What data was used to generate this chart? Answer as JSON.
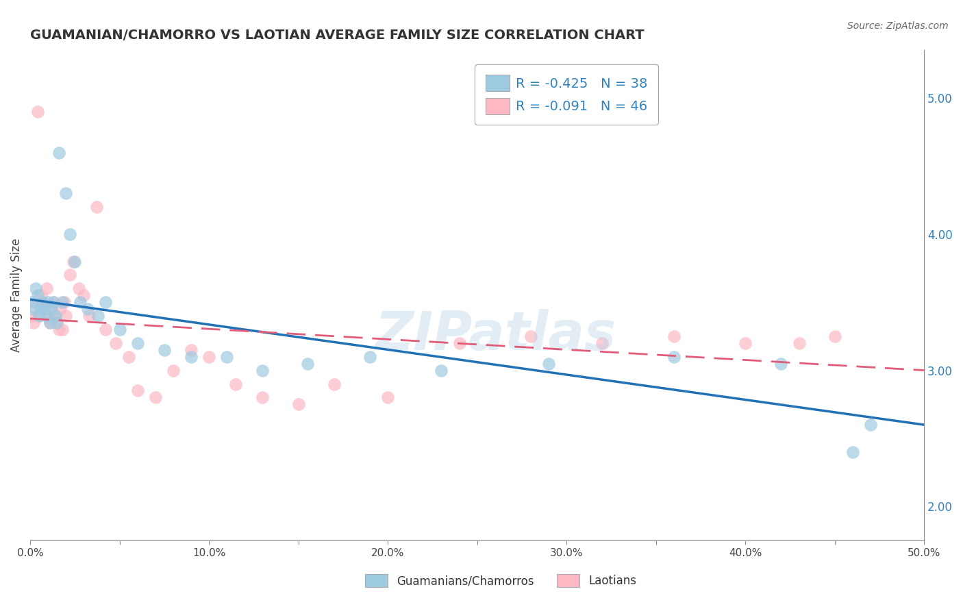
{
  "title": "GUAMANIAN/CHAMORRO VS LAOTIAN AVERAGE FAMILY SIZE CORRELATION CHART",
  "source_text": "Source: ZipAtlas.com",
  "ylabel": "Average Family Size",
  "xlim": [
    0.0,
    0.5
  ],
  "ylim": [
    1.75,
    5.35
  ],
  "yticks_right": [
    2.0,
    3.0,
    4.0,
    5.0
  ],
  "xticks": [
    0.0,
    0.05,
    0.1,
    0.15,
    0.2,
    0.25,
    0.3,
    0.35,
    0.4,
    0.45,
    0.5
  ],
  "xtick_labels": [
    "0.0%",
    "",
    "10.0%",
    "",
    "20.0%",
    "",
    "30.0%",
    "",
    "40.0%",
    "",
    "50.0%"
  ],
  "watermark": "ZIPatlas",
  "legend_r1": "R = -0.425",
  "legend_n1": "N = 38",
  "legend_r2": "R = -0.091",
  "legend_n2": "N = 46",
  "legend_label1": "Guamanians/Chamorros",
  "legend_label2": "Laotians",
  "color_blue": "#9ecae1",
  "color_pink": "#fcb9c4",
  "color_blue_line": "#2171b5",
  "color_pink_line": "#e05c78",
  "color_text_blue": "#3182bd",
  "color_grid": "#cccccc",
  "blue_x": [
    0.001,
    0.002,
    0.003,
    0.004,
    0.005,
    0.006,
    0.007,
    0.008,
    0.009,
    0.01,
    0.011,
    0.012,
    0.013,
    0.014,
    0.015,
    0.016,
    0.018,
    0.02,
    0.022,
    0.025,
    0.028,
    0.032,
    0.038,
    0.042,
    0.05,
    0.06,
    0.075,
    0.09,
    0.11,
    0.13,
    0.155,
    0.19,
    0.23,
    0.29,
    0.36,
    0.42,
    0.46,
    0.47
  ],
  "blue_y": [
    3.5,
    3.45,
    3.6,
    3.55,
    3.4,
    3.45,
    3.5,
    3.45,
    3.4,
    3.5,
    3.35,
    3.45,
    3.5,
    3.4,
    3.35,
    4.6,
    3.5,
    4.3,
    4.0,
    3.8,
    3.5,
    3.45,
    3.4,
    3.5,
    3.3,
    3.2,
    3.15,
    3.1,
    3.1,
    3.0,
    3.05,
    3.1,
    3.0,
    3.05,
    3.1,
    3.05,
    2.4,
    2.6
  ],
  "pink_x": [
    0.001,
    0.002,
    0.003,
    0.004,
    0.005,
    0.006,
    0.007,
    0.008,
    0.009,
    0.01,
    0.011,
    0.012,
    0.013,
    0.014,
    0.015,
    0.016,
    0.017,
    0.018,
    0.019,
    0.02,
    0.022,
    0.024,
    0.027,
    0.03,
    0.033,
    0.037,
    0.042,
    0.048,
    0.055,
    0.06,
    0.07,
    0.08,
    0.09,
    0.1,
    0.115,
    0.13,
    0.15,
    0.17,
    0.2,
    0.24,
    0.28,
    0.32,
    0.36,
    0.4,
    0.43,
    0.45
  ],
  "pink_y": [
    3.4,
    3.35,
    3.5,
    4.9,
    3.4,
    3.55,
    3.5,
    3.45,
    3.6,
    3.4,
    3.35,
    3.45,
    3.5,
    3.4,
    3.35,
    3.3,
    3.45,
    3.3,
    3.5,
    3.4,
    3.7,
    3.8,
    3.6,
    3.55,
    3.4,
    4.2,
    3.3,
    3.2,
    3.1,
    2.85,
    2.8,
    3.0,
    3.15,
    3.1,
    2.9,
    2.8,
    2.75,
    2.9,
    2.8,
    3.2,
    3.25,
    3.2,
    3.25,
    3.2,
    3.2,
    3.25
  ],
  "blue_line_x0": 0.0,
  "blue_line_y0": 3.52,
  "blue_line_x1": 0.5,
  "blue_line_y1": 2.6,
  "pink_line_x0": 0.0,
  "pink_line_y0": 3.38,
  "pink_line_x1": 0.5,
  "pink_line_y1": 3.0
}
